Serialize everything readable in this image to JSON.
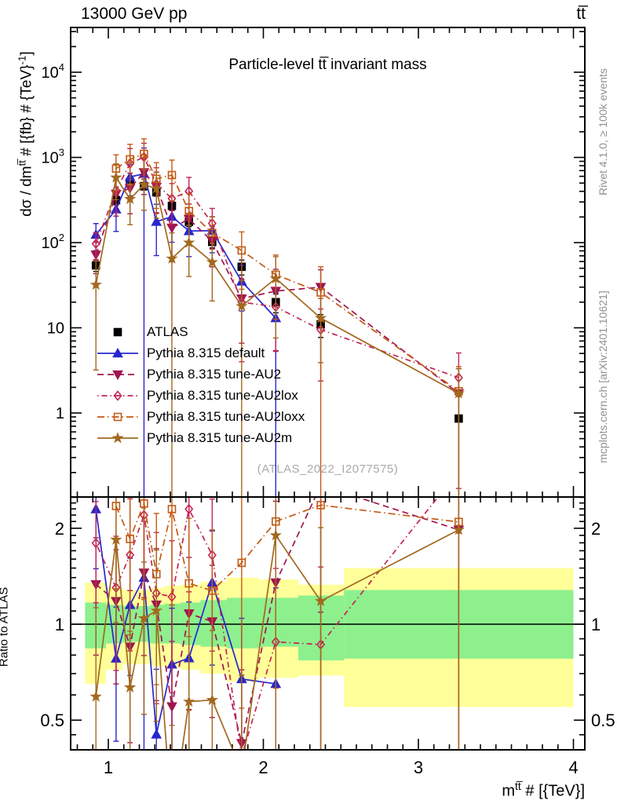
{
  "header": {
    "beam": "13000 GeV pp",
    "process": "tt̅"
  },
  "title": "Particle-level tt̅ invariant mass",
  "watermark": "(ATLAS_2022_I2077575)",
  "side_notes": {
    "top": "Rivet 4.1.0, ≥ 100k events",
    "bottom": "mcplots.cern.ch [arXiv:2401.10621]"
  },
  "axes": {
    "y_label_parts": {
      "base": "dσ / dm",
      "sup": "tt̅",
      "mid": " # [{fb} # {TeV}",
      "sup2": "-1",
      "end": "]"
    },
    "x_label_parts": {
      "base": "m",
      "sup": "tt̅",
      "rest": " # [{TeV}]"
    },
    "ratio_label": "Ratio to ATLAS",
    "y_ticks_main": [
      {
        "v": 10000,
        "base": "10",
        "exp": "4"
      },
      {
        "v": 1000,
        "base": "10",
        "exp": "3"
      },
      {
        "v": 100,
        "base": "10",
        "exp": "2"
      },
      {
        "v": 10,
        "base": "10",
        "exp": ""
      },
      {
        "v": 1,
        "base": "1",
        "exp": ""
      }
    ],
    "x_ticks": [
      {
        "v": 1,
        "label": "1"
      },
      {
        "v": 2,
        "label": "2"
      },
      {
        "v": 3,
        "label": "3"
      },
      {
        "v": 4,
        "label": "4"
      }
    ],
    "ratio_ticks": [
      {
        "v": 2,
        "label": "2"
      },
      {
        "v": 1,
        "label": "1"
      },
      {
        "v": 0.5,
        "label": "0.5"
      }
    ]
  },
  "chart_data": {
    "type": "line",
    "title": "Particle-level tt invariant mass",
    "xlabel": "m^tt # [{TeV}]",
    "ylabel": "dsigma / dm^tt # [{fb} # {TeV}^-1]",
    "ratio_ylabel": "Ratio to ATLAS",
    "x_range": [
      0.757,
      4.073
    ],
    "y_range_main": [
      0.103,
      33400
    ],
    "y_range_ratio": [
      0.404,
      2.505
    ],
    "x_scale": "linear",
    "y_scale": "log",
    "ratio_scale": "log",
    "legend_position": "upper-left-inside",
    "grid": false,
    "bins": [
      0.92,
      1.05,
      1.14,
      1.23,
      1.31,
      1.41,
      1.52,
      1.67,
      1.86,
      2.08,
      2.37,
      3.26
    ],
    "ratio_reference": "ATLAS",
    "series": [
      {
        "name": "ATLAS",
        "slug": "atlas",
        "color": "#000000",
        "marker": "square",
        "filled": true,
        "linestyle": "none",
        "values": [
          54,
          315,
          513,
          460,
          390,
          270,
          175,
          102,
          52,
          20,
          11,
          0.86
        ],
        "err": [
          0.15,
          0.12,
          0.1,
          0.1,
          0.1,
          0.12,
          0.12,
          0.15,
          0.2,
          0.25,
          0.3,
          0.95
        ]
      },
      {
        "name": "Pythia 8.315 default",
        "slug": "pythia-default",
        "color": "#2727cf",
        "marker": "triangle-up",
        "filled": true,
        "linestyle": "solid",
        "values": [
          124,
          246,
          590,
          644,
          176,
          202,
          137,
          138,
          35,
          13,
          null,
          null
        ],
        "err": [
          0.35,
          0.45,
          0.4,
          1.0,
          0.6,
          0.5,
          0.5,
          0.45,
          0.55,
          1.0,
          0,
          0
        ]
      },
      {
        "name": "Pythia 8.315 tune-AU2",
        "slug": "pythia-au2",
        "color": "#a01550",
        "marker": "triangle-down",
        "filled": true,
        "linestyle": "dashed",
        "values": [
          72,
          372,
          436,
          667,
          449,
          149,
          189,
          104,
          22,
          27,
          30,
          1.7
        ],
        "err": [
          0.4,
          0.45,
          0.5,
          0.45,
          0.5,
          0.6,
          0.5,
          0.5,
          0.7,
          0.8,
          0.6,
          0.95
        ]
      },
      {
        "name": "Pythia 8.315 tune-AU2lox",
        "slug": "pythia-au2lox",
        "color": "#c22553",
        "marker": "diamond",
        "filled": false,
        "linestyle": "dashdot-short",
        "values": [
          97,
          410,
          846,
          1012,
          488,
          329,
          402,
          168,
          20,
          17.6,
          9.5,
          2.6
        ],
        "err": [
          0.35,
          0.45,
          0.5,
          0.45,
          0.55,
          0.5,
          0.45,
          0.5,
          0.8,
          0.7,
          0.75,
          0.95
        ]
      },
      {
        "name": "Pythia 8.315 tune-AU2loxx",
        "slug": "pythia-au2loxx",
        "color": "#c35a14",
        "marker": "square",
        "filled": false,
        "linestyle": "dashdot",
        "values": [
          null,
          740,
          950,
          1100,
          560,
          620,
          235,
          130,
          81,
          42,
          26,
          1.8
        ],
        "err": [
          0,
          0.45,
          0.5,
          0.5,
          0.55,
          0.5,
          0.6,
          0.55,
          0.65,
          0.7,
          1.0,
          0.95
        ]
      },
      {
        "name": "Pythia 8.315 tune-AU2m",
        "slug": "pythia-au2m",
        "color": "#a2691f",
        "marker": "star",
        "filled": true,
        "linestyle": "solid",
        "values": [
          32,
          580,
          325,
          480,
          430,
          65,
          100,
          59,
          18,
          38,
          13,
          1.7
        ],
        "err": [
          0.9,
          0.45,
          0.5,
          0.5,
          0.55,
          1.0,
          0.6,
          0.65,
          1.0,
          0.8,
          0.7,
          0.95
        ]
      }
    ],
    "bands": {
      "edges": [
        0.85,
        0.985,
        1.095,
        1.185,
        1.27,
        1.36,
        1.465,
        1.595,
        1.765,
        1.97,
        2.225,
        2.52,
        4.0
      ],
      "yellow_lo": [
        0.65,
        0.72,
        0.75,
        0.75,
        0.74,
        0.73,
        0.72,
        0.7,
        0.66,
        0.68,
        0.69,
        0.55
      ],
      "yellow_hi": [
        1.35,
        1.3,
        1.28,
        1.28,
        1.3,
        1.32,
        1.33,
        1.36,
        1.4,
        1.38,
        1.33,
        1.5
      ],
      "green_lo": [
        0.84,
        0.87,
        0.88,
        0.88,
        0.87,
        0.87,
        0.86,
        0.85,
        0.84,
        0.85,
        0.77,
        0.78
      ],
      "green_hi": [
        1.17,
        1.15,
        1.14,
        1.14,
        1.15,
        1.16,
        1.17,
        1.19,
        1.21,
        1.21,
        1.23,
        1.28
      ]
    },
    "colors": {
      "band_yellow": "#ffff99",
      "band_green": "#8df08d",
      "ratio_line": "#000000"
    }
  }
}
